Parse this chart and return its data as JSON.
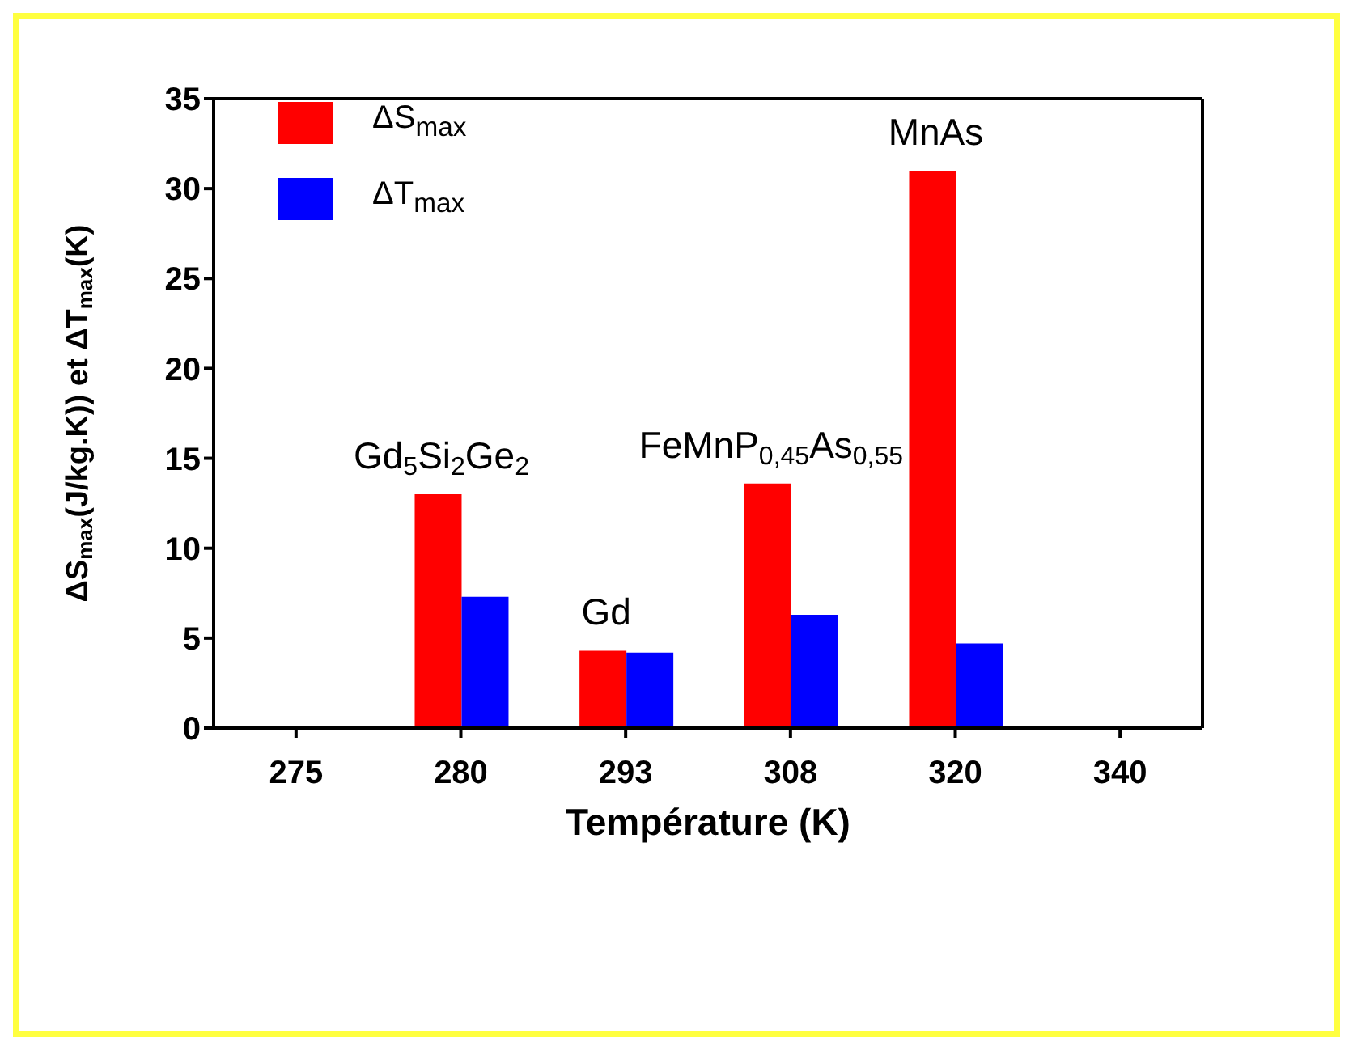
{
  "chart_data": {
    "type": "bar",
    "xlabel": "Température (K)",
    "ylabel": "ΔS$_{max}$(J/kg.K)) et ΔT$_{max}$(K)",
    "categories": [
      "275",
      "280",
      "293",
      "308",
      "320",
      "340"
    ],
    "series": [
      {
        "name": "ΔS$_{max}$",
        "color": "#ff0000",
        "values": [
          null,
          13.0,
          4.3,
          13.6,
          31.0,
          null
        ]
      },
      {
        "name": "ΔT$_{max}$",
        "color": "#0000ff",
        "values": [
          null,
          7.3,
          4.2,
          6.3,
          4.7,
          null
        ]
      }
    ],
    "ylim": [
      0,
      35
    ],
    "yticks": [
      0,
      5,
      10,
      15,
      20,
      25,
      30,
      35
    ],
    "grid": false,
    "legend": "top left",
    "annotations": [
      {
        "text": "Gd$_{5}$Si$_{2}$Ge$_{2}$",
        "x": "280",
        "y": 13.0
      },
      {
        "text": "Gd",
        "x": "293",
        "y": 4.3
      },
      {
        "text": "FeMnP$_{0,45}$As$_{0,55}$",
        "x": "308",
        "y": 13.6
      },
      {
        "text": "MnAs",
        "x": "320",
        "y": 31.0
      }
    ]
  }
}
